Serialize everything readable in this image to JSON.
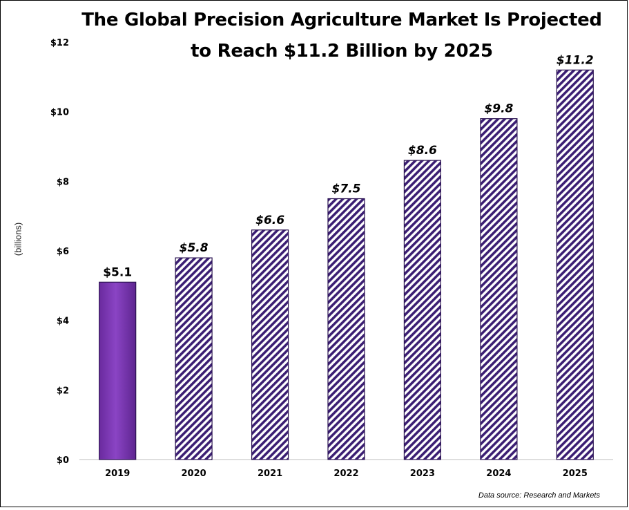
{
  "title_line1": "The Global Precision Agriculture Market Is Projected",
  "title_line2": "to Reach $11.2 Billion by 2025",
  "ylabel": "(billions)",
  "source": "Data source:  Research and Markets",
  "colors": {
    "solid_bar": "#7b35b2",
    "hatch": "#3b1e73",
    "axis": "#bdbdbd"
  },
  "chart_data": {
    "type": "bar",
    "title": "The Global Precision Agriculture Market Is Projected to Reach $11.2 Billion by 2025",
    "xlabel": "",
    "ylabel": "(billions)",
    "categories": [
      "2019",
      "2020",
      "2021",
      "2022",
      "2023",
      "2024",
      "2025"
    ],
    "values": [
      5.1,
      5.8,
      6.6,
      7.5,
      8.6,
      9.8,
      11.2
    ],
    "data_labels": [
      "$5.1",
      "$5.8",
      "$6.6",
      "$7.5",
      "$8.6",
      "$9.8",
      "$11.2"
    ],
    "projected": [
      false,
      true,
      true,
      true,
      true,
      true,
      true
    ],
    "ylim": [
      0,
      12
    ],
    "yticks": [
      0,
      2,
      4,
      6,
      8,
      10,
      12
    ],
    "ytick_labels": [
      "$0",
      "$2",
      "$4",
      "$6",
      "$8",
      "$10",
      "$12"
    ],
    "grid": false,
    "legend": "none"
  }
}
